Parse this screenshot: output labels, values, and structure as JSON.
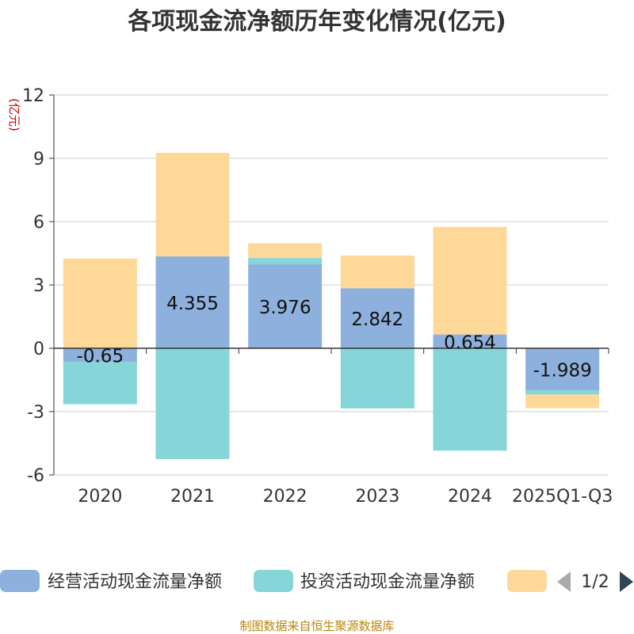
{
  "chart_data": {
    "type": "bar",
    "stacked": true,
    "title": "各项现金流净额历年变化情况(亿元)",
    "ylabel": "(亿元)",
    "xlabel": "",
    "ylim": [
      -6,
      12
    ],
    "yticks": [
      -6,
      -3,
      0,
      3,
      6,
      9,
      12
    ],
    "categories": [
      "2020",
      "2021",
      "2022",
      "2023",
      "2024",
      "2025Q1-Q3"
    ],
    "series": [
      {
        "name": "经营活动现金流量净额",
        "color": "#8eb0dc",
        "values": [
          -0.65,
          4.355,
          3.976,
          2.842,
          0.654,
          -1.989
        ],
        "labels": [
          "-0.65",
          "4.355",
          "3.976",
          "2.842",
          "0.654",
          "-1.989"
        ]
      },
      {
        "name": "投资活动现金流量净额",
        "color": "#86d5d9",
        "values": [
          -2.0,
          -5.25,
          0.3,
          -2.85,
          -4.85,
          -0.2
        ]
      },
      {
        "name": "",
        "color": "#fed898",
        "values": [
          4.25,
          4.9,
          0.7,
          1.55,
          5.1,
          -0.65
        ]
      }
    ],
    "legend": {
      "position": "bottom",
      "page": "1/2"
    }
  },
  "source_note": "制图数据来自恒生聚源数据库"
}
